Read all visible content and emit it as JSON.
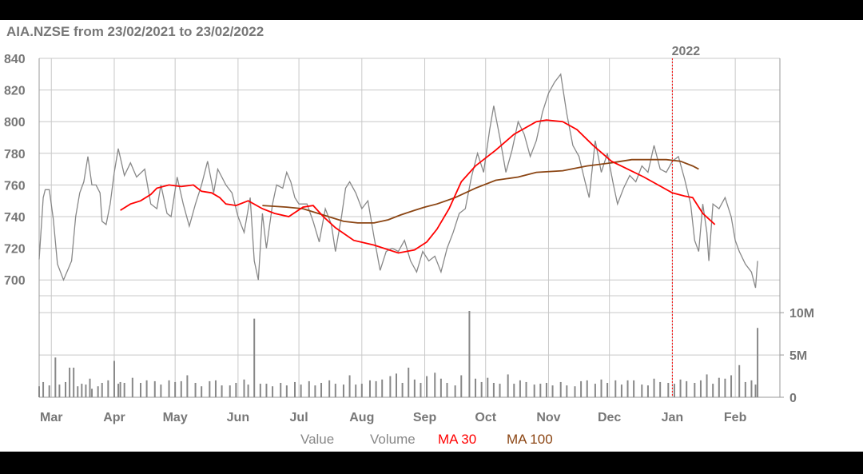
{
  "chart_data": {
    "type": "line",
    "title": "AIA.NZSE from 23/02/2021 to 23/02/2022",
    "y_ticks": [
      "840",
      "820",
      "800",
      "780",
      "760",
      "740",
      "720",
      "700"
    ],
    "volume_ticks": [
      "10M",
      "5M",
      "0"
    ],
    "month_labels": [
      "Mar",
      "Apr",
      "May",
      "Jun",
      "Jul",
      "Aug",
      "Sep",
      "Oct",
      "Nov",
      "Dec",
      "Jan",
      "Feb"
    ],
    "year_marker": "2022",
    "ylim": [
      690,
      840
    ],
    "volume_ylim": [
      0,
      12
    ],
    "grid": true,
    "legend_position": "bottom",
    "series": [
      {
        "name": "Value",
        "color": "#888888",
        "points": [
          [
            0,
            713
          ],
          [
            2,
            752
          ],
          [
            3,
            757
          ],
          [
            5,
            757
          ],
          [
            7,
            738
          ],
          [
            9,
            710
          ],
          [
            12,
            700
          ],
          [
            14,
            706
          ],
          [
            16,
            712
          ],
          [
            18,
            740
          ],
          [
            20,
            755
          ],
          [
            22,
            762
          ],
          [
            24,
            778
          ],
          [
            26,
            760
          ],
          [
            28,
            760
          ],
          [
            30,
            755
          ],
          [
            31,
            737
          ],
          [
            33,
            735
          ],
          [
            35,
            748
          ],
          [
            37,
            768
          ],
          [
            39,
            783
          ],
          [
            42,
            766
          ],
          [
            45,
            774
          ],
          [
            48,
            765
          ],
          [
            52,
            770
          ],
          [
            55,
            748
          ],
          [
            58,
            745
          ],
          [
            60,
            760
          ],
          [
            63,
            742
          ],
          [
            65,
            740
          ],
          [
            68,
            765
          ],
          [
            71,
            748
          ],
          [
            74,
            734
          ],
          [
            77,
            748
          ],
          [
            80,
            760
          ],
          [
            83,
            775
          ],
          [
            86,
            755
          ],
          [
            88,
            770
          ],
          [
            92,
            760
          ],
          [
            95,
            755
          ],
          [
            98,
            740
          ],
          [
            101,
            730
          ],
          [
            104,
            752
          ],
          [
            106,
            712
          ],
          [
            108,
            700
          ],
          [
            110,
            742
          ],
          [
            112,
            720
          ],
          [
            115,
            748
          ],
          [
            117,
            760
          ],
          [
            120,
            758
          ],
          [
            122,
            768
          ],
          [
            124,
            762
          ],
          [
            126,
            752
          ],
          [
            128,
            748
          ],
          [
            132,
            748
          ],
          [
            135,
            737
          ],
          [
            138,
            724
          ],
          [
            141,
            745
          ],
          [
            144,
            735
          ],
          [
            146,
            718
          ],
          [
            149,
            740
          ],
          [
            151,
            758
          ],
          [
            153,
            762
          ],
          [
            156,
            755
          ],
          [
            159,
            745
          ],
          [
            162,
            750
          ],
          [
            165,
            727
          ],
          [
            168,
            706
          ],
          [
            171,
            718
          ],
          [
            174,
            720
          ],
          [
            177,
            718
          ],
          [
            180,
            725
          ],
          [
            183,
            712
          ],
          [
            186,
            705
          ],
          [
            189,
            718
          ],
          [
            192,
            712
          ],
          [
            195,
            715
          ],
          [
            198,
            705
          ],
          [
            201,
            720
          ],
          [
            204,
            730
          ],
          [
            207,
            742
          ],
          [
            210,
            745
          ],
          [
            213,
            765
          ],
          [
            216,
            780
          ],
          [
            219,
            768
          ],
          [
            222,
            795
          ],
          [
            224,
            810
          ],
          [
            227,
            790
          ],
          [
            230,
            768
          ],
          [
            233,
            782
          ],
          [
            236,
            800
          ],
          [
            239,
            792
          ],
          [
            242,
            778
          ],
          [
            245,
            788
          ],
          [
            248,
            806
          ],
          [
            251,
            818
          ],
          [
            254,
            825
          ],
          [
            257,
            830
          ],
          [
            260,
            805
          ],
          [
            263,
            785
          ],
          [
            266,
            778
          ],
          [
            269,
            762
          ],
          [
            271,
            752
          ],
          [
            274,
            788
          ],
          [
            277,
            768
          ],
          [
            280,
            780
          ],
          [
            283,
            760
          ],
          [
            285,
            748
          ],
          [
            288,
            758
          ],
          [
            291,
            766
          ],
          [
            294,
            762
          ],
          [
            297,
            772
          ],
          [
            300,
            768
          ],
          [
            303,
            785
          ],
          [
            306,
            770
          ],
          [
            309,
            768
          ],
          [
            312,
            775
          ],
          [
            315,
            778
          ],
          [
            318,
            764
          ],
          [
            321,
            748
          ],
          [
            323,
            725
          ],
          [
            325,
            718
          ],
          [
            327,
            748
          ],
          [
            329,
            730
          ],
          [
            330,
            712
          ],
          [
            332,
            748
          ],
          [
            335,
            745
          ],
          [
            338,
            752
          ],
          [
            341,
            740
          ],
          [
            343,
            725
          ],
          [
            345,
            718
          ],
          [
            348,
            710
          ],
          [
            351,
            705
          ],
          [
            353,
            695
          ],
          [
            354,
            712
          ]
        ],
        "ma30": [
          [
            40,
            744
          ],
          [
            45,
            748
          ],
          [
            50,
            750
          ],
          [
            55,
            754
          ],
          [
            58,
            758
          ],
          [
            64,
            760
          ],
          [
            70,
            759
          ],
          [
            76,
            760
          ],
          [
            80,
            756
          ],
          [
            85,
            755
          ],
          [
            89,
            752
          ],
          [
            92,
            748
          ],
          [
            97,
            747
          ],
          [
            103,
            750
          ],
          [
            110,
            745
          ],
          [
            116,
            742
          ],
          [
            123,
            740
          ],
          [
            130,
            746
          ],
          [
            135,
            747
          ],
          [
            140,
            740
          ],
          [
            146,
            733
          ],
          [
            155,
            725
          ],
          [
            165,
            722
          ],
          [
            177,
            717
          ],
          [
            185,
            719
          ],
          [
            191,
            724
          ],
          [
            196,
            732
          ],
          [
            202,
            745
          ],
          [
            208,
            762
          ],
          [
            215,
            772
          ],
          [
            225,
            782
          ],
          [
            234,
            792
          ],
          [
            245,
            800
          ],
          [
            250,
            801
          ],
          [
            258,
            800
          ],
          [
            265,
            795
          ],
          [
            273,
            785
          ],
          [
            282,
            775
          ],
          [
            290,
            770
          ],
          [
            298,
            765
          ],
          [
            305,
            760
          ],
          [
            312,
            755
          ],
          [
            318,
            753
          ],
          [
            322,
            752
          ],
          [
            327,
            742
          ],
          [
            333,
            735
          ]
        ],
        "ma100": [
          [
            110,
            747
          ],
          [
            122,
            746
          ],
          [
            130,
            745
          ],
          [
            140,
            741
          ],
          [
            150,
            737
          ],
          [
            157,
            736
          ],
          [
            165,
            736
          ],
          [
            172,
            738
          ],
          [
            178,
            741
          ],
          [
            185,
            744
          ],
          [
            190,
            746
          ],
          [
            196,
            748
          ],
          [
            205,
            752
          ],
          [
            215,
            758
          ],
          [
            225,
            763
          ],
          [
            236,
            765
          ],
          [
            245,
            768
          ],
          [
            258,
            769
          ],
          [
            270,
            772
          ],
          [
            282,
            774
          ],
          [
            292,
            776
          ],
          [
            302,
            776
          ],
          [
            309,
            776
          ],
          [
            316,
            775
          ],
          [
            322,
            772
          ],
          [
            325,
            770
          ]
        ],
        "volume": [
          [
            0,
            1.3
          ],
          [
            2,
            1.8
          ],
          [
            5,
            1.4
          ],
          [
            8,
            4.7
          ],
          [
            10,
            1.5
          ],
          [
            13,
            1.8
          ],
          [
            15,
            3.5
          ],
          [
            17,
            3.5
          ],
          [
            19,
            1.3
          ],
          [
            21,
            1.6
          ],
          [
            23,
            1.5
          ],
          [
            25,
            2.2
          ],
          [
            26,
            1.0
          ],
          [
            29,
            1.3
          ],
          [
            31,
            1.7
          ],
          [
            34,
            2.0
          ],
          [
            37,
            4.3
          ],
          [
            39,
            1.6
          ],
          [
            40,
            1.8
          ],
          [
            42,
            1.7
          ],
          [
            46,
            2.3
          ],
          [
            50,
            1.7
          ],
          [
            53,
            2.0
          ],
          [
            57,
            1.9
          ],
          [
            60,
            1.5
          ],
          [
            64,
            2.0
          ],
          [
            67,
            1.8
          ],
          [
            70,
            1.9
          ],
          [
            73,
            2.6
          ],
          [
            77,
            1.7
          ],
          [
            80,
            1.3
          ],
          [
            84,
            1.9
          ],
          [
            87,
            2.0
          ],
          [
            90,
            1.4
          ],
          [
            94,
            1.4
          ],
          [
            97,
            1.7
          ],
          [
            101,
            2.1
          ],
          [
            103,
            1.5
          ],
          [
            106,
            9.3
          ],
          [
            109,
            1.6
          ],
          [
            112,
            1.6
          ],
          [
            115,
            1.3
          ],
          [
            119,
            1.7
          ],
          [
            122,
            1.4
          ],
          [
            126,
            1.8
          ],
          [
            129,
            1.5
          ],
          [
            133,
            1.9
          ],
          [
            136,
            1.4
          ],
          [
            139,
            1.7
          ],
          [
            143,
            2.0
          ],
          [
            146,
            1.6
          ],
          [
            150,
            1.5
          ],
          [
            153,
            2.6
          ],
          [
            156,
            1.5
          ],
          [
            159,
            1.6
          ],
          [
            163,
            2.0
          ],
          [
            166,
            1.9
          ],
          [
            169,
            2.1
          ],
          [
            173,
            2.5
          ],
          [
            176,
            2.8
          ],
          [
            179,
            1.7
          ],
          [
            182,
            3.5
          ],
          [
            185,
            2.1
          ],
          [
            188,
            1.7
          ],
          [
            191,
            2.5
          ],
          [
            195,
            2.9
          ],
          [
            198,
            2.2
          ],
          [
            201,
            1.7
          ],
          [
            205,
            1.4
          ],
          [
            208,
            2.6
          ],
          [
            212,
            10.2
          ],
          [
            215,
            2.2
          ],
          [
            218,
            1.8
          ],
          [
            221,
            2.3
          ],
          [
            224,
            1.7
          ],
          [
            227,
            1.6
          ],
          [
            231,
            2.7
          ],
          [
            234,
            1.6
          ],
          [
            237,
            2.0
          ],
          [
            240,
            1.8
          ],
          [
            244,
            1.5
          ],
          [
            247,
            1.6
          ],
          [
            250,
            1.7
          ],
          [
            253,
            1.4
          ],
          [
            257,
            1.8
          ],
          [
            260,
            1.4
          ],
          [
            264,
            1.3
          ],
          [
            267,
            1.9
          ],
          [
            270,
            2.0
          ],
          [
            274,
            1.6
          ],
          [
            277,
            2.1
          ],
          [
            280,
            1.7
          ],
          [
            284,
            2.0
          ],
          [
            287,
            1.5
          ],
          [
            290,
            2.0
          ],
          [
            293,
            2.0
          ],
          [
            297,
            1.5
          ],
          [
            300,
            1.4
          ],
          [
            303,
            2.2
          ],
          [
            306,
            1.8
          ],
          [
            310,
            1.7
          ],
          [
            313,
            1.6
          ],
          [
            316,
            2.1
          ],
          [
            319,
            1.9
          ],
          [
            323,
            1.7
          ],
          [
            326,
            2.0
          ],
          [
            329,
            2.7
          ],
          [
            332,
            1.6
          ],
          [
            335,
            2.3
          ],
          [
            338,
            2.2
          ],
          [
            341,
            2.6
          ],
          [
            345,
            3.8
          ],
          [
            348,
            1.8
          ],
          [
            351,
            2.0
          ],
          [
            353,
            1.5
          ],
          [
            354,
            8.2
          ]
        ]
      }
    ],
    "legend": [
      {
        "label": "Value",
        "color": "#888888"
      },
      {
        "label": "Volume",
        "color": "#888888"
      },
      {
        "label": "MA 30",
        "color": "#ff0000"
      },
      {
        "label": "MA 100",
        "color": "#8b4513"
      }
    ]
  }
}
